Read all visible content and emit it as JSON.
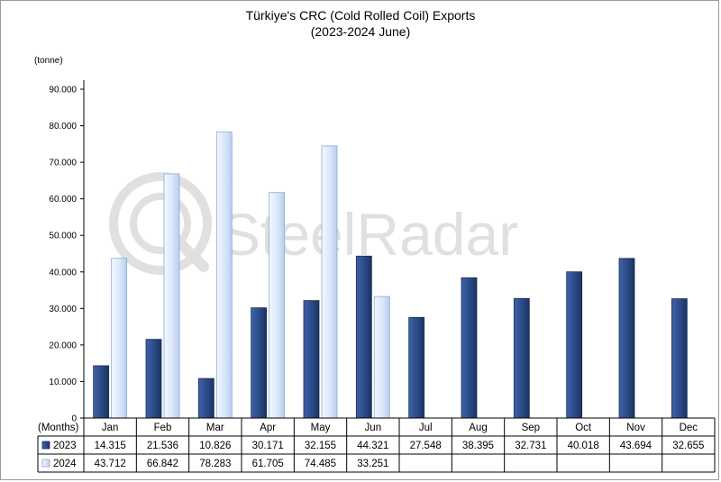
{
  "chart_data": {
    "type": "bar",
    "title": "Türkiye's CRC (Cold Rolled Coil) Exports",
    "subtitle": "(2023-2024 June)",
    "ylabel": "(tonne)",
    "xlabel": "(Months)",
    "ylim": [
      0,
      90000
    ],
    "yticks": [
      0,
      10000,
      20000,
      30000,
      40000,
      50000,
      60000,
      70000,
      80000,
      90000
    ],
    "ytick_labels": [
      "0",
      "10.000",
      "20.000",
      "30.000",
      "40.000",
      "50.000",
      "60.000",
      "70.000",
      "80.000",
      "90.000"
    ],
    "grid": false,
    "legend": "data-table",
    "categories": [
      "Jan",
      "Feb",
      "Mar",
      "Apr",
      "May",
      "Jun",
      "Jul",
      "Aug",
      "Sep",
      "Oct",
      "Nov",
      "Dec"
    ],
    "series": [
      {
        "name": "2023",
        "color": "#2a4a86",
        "values": [
          14315,
          21536,
          10826,
          30171,
          32155,
          44321,
          27548,
          38395,
          32731,
          40018,
          43694,
          32655
        ],
        "labels": [
          "14.315",
          "21.536",
          "10.826",
          "30.171",
          "32.155",
          "44.321",
          "27.548",
          "38.395",
          "32.731",
          "40.018",
          "43.694",
          "32.655"
        ]
      },
      {
        "name": "2024",
        "color": "#d9e7fa",
        "values": [
          43712,
          66842,
          78283,
          61705,
          74485,
          33251,
          null,
          null,
          null,
          null,
          null,
          null
        ],
        "labels": [
          "43.712",
          "66.842",
          "78.283",
          "61.705",
          "74.485",
          "33.251",
          "",
          "",
          "",
          "",
          "",
          ""
        ]
      }
    ]
  },
  "watermark": "SteelRadar",
  "colors": {
    "series_2023": "#2a4a86",
    "series_2024": "#d9e7fa",
    "axis": "#000000",
    "watermark": "#cfcfcf"
  }
}
